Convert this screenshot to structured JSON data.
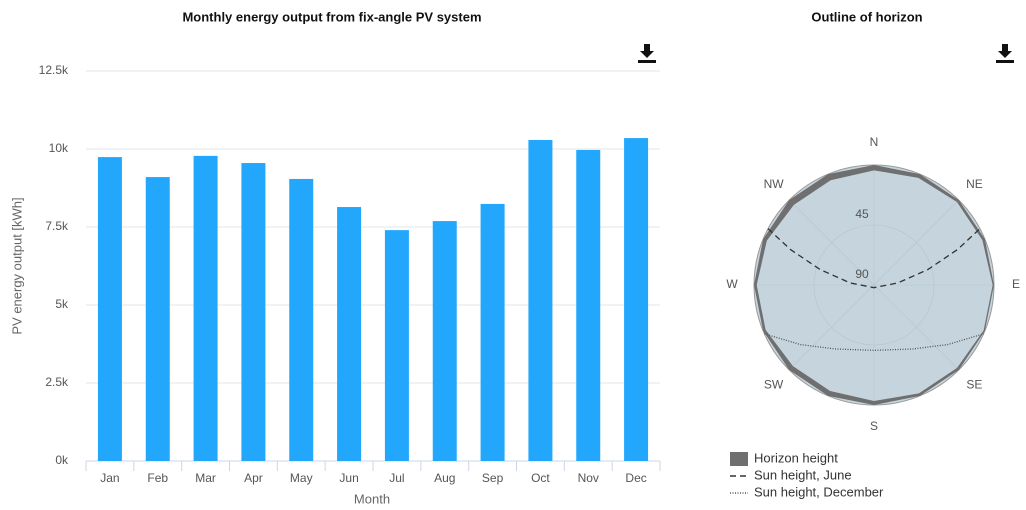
{
  "chart_data": [
    {
      "type": "bar",
      "title": "Monthly energy output from fix-angle PV system",
      "x_label": "Month",
      "y_label": "PV energy output [kWh]",
      "categories": [
        "Jan",
        "Feb",
        "Mar",
        "Apr",
        "May",
        "Jun",
        "Jul",
        "Aug",
        "Sep",
        "Oct",
        "Nov",
        "Dec"
      ],
      "values": [
        9740,
        9100,
        9780,
        9550,
        9040,
        8140,
        7400,
        7690,
        8240,
        10290,
        9970,
        10350
      ],
      "color": "#22a7fd",
      "grid": true,
      "ylim": [
        0,
        12500
      ],
      "yticks": [
        {
          "value": 0,
          "label": "0k"
        },
        {
          "value": 2500,
          "label": "2.5k"
        },
        {
          "value": 5000,
          "label": "5k"
        },
        {
          "value": 7500,
          "label": "7.5k"
        },
        {
          "value": 10000,
          "label": "10k"
        },
        {
          "value": 12500,
          "label": "12.5k"
        }
      ]
    },
    {
      "type": "polar",
      "title": "Outline of horizon",
      "categories": [
        "N",
        "NE",
        "E",
        "SE",
        "S",
        "SW",
        "W",
        "NW"
      ],
      "rlim": [
        90,
        0
      ],
      "rticks": [
        45,
        90
      ],
      "fill": "#c6d4de",
      "grid": true,
      "series": [
        {
          "name": "Horizon height",
          "color": "#6f6f6f",
          "style": "area",
          "x": [
            0,
            22.5,
            45,
            67.5,
            90,
            112.5,
            135,
            157.5,
            180,
            202.5,
            225,
            247.5,
            270,
            292.5,
            315,
            337.5
          ],
          "values": [
            4,
            3,
            2,
            2,
            1,
            1,
            2,
            2,
            3,
            4,
            4,
            2,
            2,
            3,
            5,
            5
          ]
        },
        {
          "name": "Sun height, June",
          "color": "#333333",
          "style": "dash",
          "x": [
            298,
            293,
            286,
            275,
            180,
            85,
            74,
            67,
            62
          ],
          "values": [
            0,
            22,
            48,
            72,
            88,
            72,
            48,
            22,
            0
          ]
        },
        {
          "name": "Sun height, December",
          "color": "#555555",
          "style": "dot",
          "x": [
            246,
            231,
            211,
            180,
            149,
            129,
            114
          ],
          "values": [
            0,
            19,
            34,
            41,
            34,
            19,
            0
          ]
        }
      ]
    }
  ]
}
